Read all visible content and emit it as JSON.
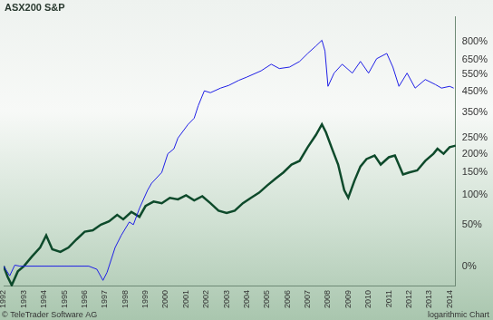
{
  "chart_data": {
    "type": "line",
    "annotations": [
      "© TeleTrader Software AG",
      "logarithmic Chart"
    ],
    "log": "y",
    "grid": false,
    "legend": "top-left",
    "xlim": [
      1992,
      2014.3
    ],
    "xticks": [
      1992,
      1993,
      1994,
      1995,
      1996,
      1997,
      1998,
      1999,
      2000,
      2001,
      2002,
      2003,
      2004,
      2005,
      2006,
      2007,
      2008,
      2009,
      2010,
      2011,
      2012,
      2013,
      2014
    ],
    "ylim": [
      -18,
      1050
    ],
    "yticks": [
      {
        "value": 0,
        "label": "0%"
      },
      {
        "value": 50,
        "label": "50%"
      },
      {
        "value": 100,
        "label": "100%"
      },
      {
        "value": 150,
        "label": "150%"
      },
      {
        "value": 200,
        "label": "200%"
      },
      {
        "value": 250,
        "label": "250%"
      },
      {
        "value": 350,
        "label": "350%"
      },
      {
        "value": 450,
        "label": "450%"
      },
      {
        "value": 550,
        "label": "550%"
      },
      {
        "value": 650,
        "label": "650%"
      },
      {
        "value": 800,
        "label": "800%"
      }
    ],
    "series": [
      {
        "name": "ASX200",
        "color": "#0e4a2b",
        "x": [
          1992,
          1992.2,
          1992.4,
          1992.7,
          1993.0,
          1993.4,
          1993.8,
          1994.1,
          1994.4,
          1994.8,
          1995.2,
          1995.6,
          1996.0,
          1996.4,
          1996.8,
          1997.2,
          1997.6,
          1997.9,
          1998.3,
          1998.7,
          1999.0,
          1999.4,
          1999.8,
          2000.2,
          2000.6,
          2001.0,
          2001.4,
          2001.8,
          2002.2,
          2002.6,
          2003.0,
          2003.4,
          2003.8,
          2004.2,
          2004.6,
          2005.0,
          2005.4,
          2005.8,
          2006.2,
          2006.6,
          2007.0,
          2007.4,
          2007.7,
          2007.9,
          2008.2,
          2008.5,
          2008.8,
          2009.0,
          2009.3,
          2009.6,
          2009.9,
          2010.3,
          2010.6,
          2011.0,
          2011.3,
          2011.7,
          2012.0,
          2012.4,
          2012.8,
          2013.2,
          2013.4,
          2013.7,
          2014.0,
          2014.3
        ],
        "values": [
          0,
          -10,
          -17,
          -5,
          0,
          10,
          20,
          35,
          18,
          15,
          20,
          30,
          40,
          42,
          50,
          55,
          65,
          58,
          70,
          62,
          80,
          88,
          85,
          95,
          92,
          100,
          90,
          98,
          85,
          72,
          68,
          72,
          85,
          95,
          105,
          120,
          135,
          150,
          170,
          180,
          220,
          260,
          300,
          270,
          215,
          170,
          110,
          95,
          130,
          165,
          185,
          195,
          170,
          190,
          195,
          145,
          150,
          155,
          180,
          200,
          215,
          200,
          220,
          225
        ]
      },
      {
        "name": "S&P",
        "color": "#1f1fe6",
        "x": [
          1992,
          1992.3,
          1992.55,
          1992.8,
          1996.2,
          1996.6,
          1996.9,
          1997.1,
          1997.5,
          1997.8,
          1998.2,
          1998.4,
          1998.7,
          1999.1,
          1999.3,
          1999.8,
          2000.1,
          2000.4,
          2000.6,
          2001.1,
          2001.4,
          2001.6,
          2001.9,
          2002.2,
          2002.7,
          2003.1,
          2003.6,
          2004.0,
          2004.7,
          2005.2,
          2005.6,
          2006.1,
          2006.6,
          2007.0,
          2007.4,
          2007.7,
          2007.85,
          2008.0,
          2008.3,
          2008.7,
          2009.2,
          2009.6,
          2010.0,
          2010.4,
          2010.9,
          2011.2,
          2011.5,
          2011.9,
          2012.3,
          2012.8,
          2013.3,
          2013.6,
          2014.0,
          2014.2
        ],
        "values": [
          0,
          -9,
          1,
          0,
          0,
          -3,
          -13,
          -6,
          20,
          35,
          54,
          50,
          76,
          110,
          125,
          150,
          200,
          215,
          250,
          300,
          325,
          380,
          455,
          445,
          470,
          485,
          515,
          535,
          575,
          620,
          590,
          600,
          640,
          700,
          760,
          810,
          720,
          480,
          560,
          620,
          560,
          640,
          560,
          660,
          700,
          600,
          480,
          560,
          470,
          520,
          490,
          470,
          480,
          470
        ]
      }
    ]
  }
}
